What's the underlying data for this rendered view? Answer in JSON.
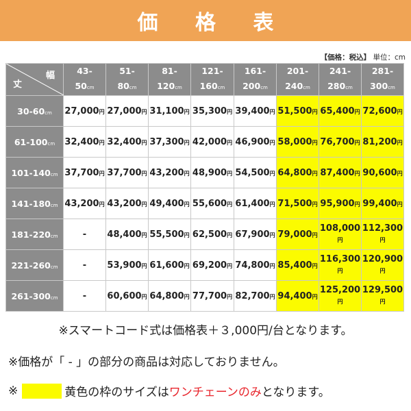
{
  "title": "価 格 表",
  "meta": {
    "tax_label": "【価格：税込】",
    "unit_label": "単位：cm"
  },
  "corner": {
    "width_label": "幅",
    "height_label": "丈"
  },
  "columns": [
    {
      "top": "43-",
      "bottom": "50",
      "unit": "cm"
    },
    {
      "top": "51-",
      "bottom": "80",
      "unit": "cm"
    },
    {
      "top": "81-",
      "bottom": "120",
      "unit": "cm"
    },
    {
      "top": "121-",
      "bottom": "160",
      "unit": "cm"
    },
    {
      "top": "161-",
      "bottom": "200",
      "unit": "cm"
    },
    {
      "top": "201-",
      "bottom": "240",
      "unit": "cm"
    },
    {
      "top": "241-",
      "bottom": "280",
      "unit": "cm"
    },
    {
      "top": "281-",
      "bottom": "300",
      "unit": "cm"
    }
  ],
  "yellow_columns": [
    5,
    6,
    7
  ],
  "rows": [
    {
      "label": "30-60",
      "unit": "cm",
      "cells": [
        "27,000",
        "27,000",
        "31,100",
        "35,300",
        "39,400",
        "51,500",
        "65,400",
        "72,600"
      ]
    },
    {
      "label": "61-100",
      "unit": "cm",
      "cells": [
        "32,400",
        "32,400",
        "37,300",
        "42,000",
        "46,900",
        "58,000",
        "76,700",
        "81,200"
      ]
    },
    {
      "label": "101-140",
      "unit": "cm",
      "cells": [
        "37,700",
        "37,700",
        "43,200",
        "48,900",
        "54,500",
        "64,800",
        "87,400",
        "90,600"
      ]
    },
    {
      "label": "141-180",
      "unit": "cm",
      "cells": [
        "43,200",
        "43,200",
        "49,400",
        "55,600",
        "61,400",
        "71,500",
        "95,900",
        "99,400"
      ]
    },
    {
      "label": "181-220",
      "unit": "cm",
      "cells": [
        "-",
        "48,400",
        "55,500",
        "62,500",
        "67,900",
        "79,000",
        "108,000",
        "112,300"
      ]
    },
    {
      "label": "221-260",
      "unit": "cm",
      "cells": [
        "-",
        "53,900",
        "61,600",
        "69,200",
        "74,800",
        "85,400",
        "116,300",
        "120,900"
      ]
    },
    {
      "label": "261-300",
      "unit": "cm",
      "cells": [
        "-",
        "60,600",
        "64,800",
        "77,700",
        "82,700",
        "94,400",
        "125,200",
        "129,500"
      ]
    }
  ],
  "yen": "円",
  "notes": {
    "note1": "※スマートコード式は価格表＋３,000円/台となります。",
    "note2": "※価格が「 - 」の部分の商品は対応しておりません。",
    "note3_prefix": "※",
    "note3_mid": "黄色の枠のサイズは",
    "note3_red": "ワンチェーンのみ",
    "note3_suffix": "となります。",
    "swatch_color": "#fbfb00"
  }
}
